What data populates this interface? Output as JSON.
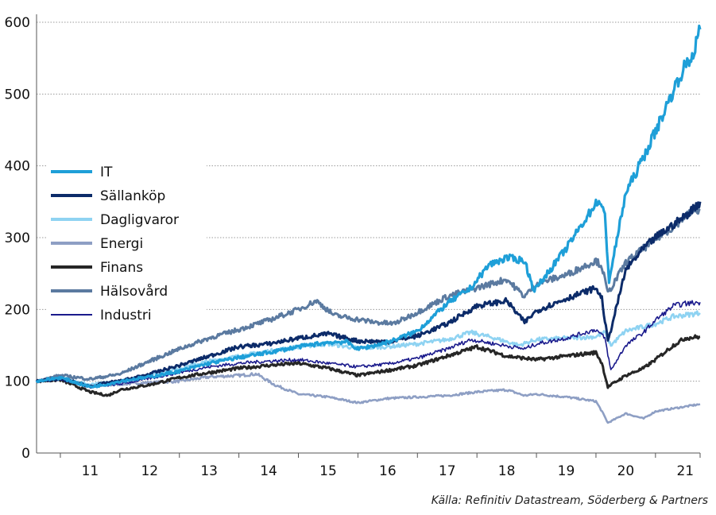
{
  "chart_data": {
    "type": "line",
    "title": "",
    "xlabel": "",
    "ylabel": "",
    "ylim": [
      0,
      600
    ],
    "yticks": [
      0,
      100,
      200,
      300,
      400,
      500,
      600
    ],
    "x_ticks": [
      "11",
      "12",
      "13",
      "14",
      "15",
      "16",
      "17",
      "18",
      "19",
      "20",
      "21"
    ],
    "x_range": [
      2010.6,
      2021.75
    ],
    "grid": "horizontal dotted",
    "legend_placement": "left",
    "series": [
      {
        "name": "IT",
        "color": "#1e9fd8",
        "x": [
          2010.6,
          2011.0,
          2011.5,
          2011.8,
          2012.0,
          2012.5,
          2013.0,
          2013.5,
          2014.0,
          2014.5,
          2015.0,
          2015.5,
          2015.8,
          2016.0,
          2016.3,
          2016.6,
          2017.0,
          2017.5,
          2017.9,
          2018.2,
          2018.5,
          2018.8,
          2018.95,
          2019.0,
          2019.5,
          2020.0,
          2020.05,
          2020.15,
          2020.22,
          2020.5,
          2020.8,
          2021.0,
          2021.3,
          2021.5,
          2021.6,
          2021.75
        ],
        "y": [
          100,
          105,
          92,
          96,
          100,
          106,
          114,
          125,
          133,
          140,
          148,
          154,
          155,
          145,
          150,
          157,
          170,
          208,
          230,
          262,
          272,
          268,
          228,
          230,
          285,
          348,
          352,
          330,
          240,
          362,
          412,
          448,
          505,
          540,
          548,
          590
        ]
      },
      {
        "name": "Sällanköp",
        "color": "#0c2b69",
        "x": [
          2010.6,
          2011.0,
          2011.5,
          2011.8,
          2012.0,
          2012.5,
          2013.0,
          2013.5,
          2014.0,
          2014.5,
          2015.0,
          2015.5,
          2016.0,
          2016.5,
          2017.0,
          2017.5,
          2018.0,
          2018.5,
          2018.8,
          2019.0,
          2019.5,
          2020.0,
          2020.1,
          2020.2,
          2020.5,
          2020.8,
          2021.0,
          2021.3,
          2021.5,
          2021.75
        ],
        "y": [
          100,
          104,
          93,
          98,
          100,
          110,
          122,
          135,
          148,
          152,
          160,
          166,
          156,
          155,
          163,
          180,
          205,
          212,
          182,
          198,
          215,
          230,
          215,
          155,
          255,
          285,
          300,
          318,
          330,
          350
        ]
      },
      {
        "name": "Dagligvaror",
        "color": "#8fd3f2",
        "x": [
          2010.6,
          2011.0,
          2011.5,
          2012.0,
          2012.5,
          2013.0,
          2013.5,
          2014.0,
          2014.5,
          2015.0,
          2015.5,
          2016.0,
          2016.5,
          2017.0,
          2017.5,
          2017.9,
          2018.3,
          2018.7,
          2019.0,
          2019.5,
          2020.0,
          2020.15,
          2020.25,
          2020.5,
          2021.0,
          2021.3,
          2021.75
        ],
        "y": [
          100,
          105,
          95,
          100,
          108,
          118,
          128,
          135,
          142,
          148,
          152,
          146,
          148,
          152,
          158,
          168,
          160,
          150,
          158,
          160,
          162,
          168,
          150,
          170,
          180,
          190,
          195
        ]
      },
      {
        "name": "Energi",
        "color": "#8e9fc4",
        "x": [
          2010.6,
          2011.0,
          2011.5,
          2012.0,
          2012.5,
          2013.0,
          2013.5,
          2014.0,
          2014.3,
          2014.6,
          2015.0,
          2015.5,
          2016.0,
          2016.5,
          2017.0,
          2017.5,
          2018.0,
          2018.5,
          2018.8,
          2019.0,
          2019.5,
          2020.0,
          2020.1,
          2020.2,
          2020.5,
          2020.8,
          2021.0,
          2021.3,
          2021.6,
          2021.75
        ],
        "y": [
          100,
          104,
          92,
          96,
          98,
          100,
          106,
          108,
          110,
          95,
          82,
          78,
          70,
          76,
          78,
          80,
          85,
          88,
          80,
          82,
          78,
          72,
          58,
          42,
          55,
          48,
          58,
          62,
          66,
          68
        ]
      },
      {
        "name": "Finans",
        "color": "#262626",
        "x": [
          2010.6,
          2011.0,
          2011.5,
          2011.8,
          2012.0,
          2012.5,
          2013.0,
          2013.5,
          2014.0,
          2014.5,
          2015.0,
          2015.5,
          2016.0,
          2016.5,
          2017.0,
          2017.5,
          2018.0,
          2018.5,
          2019.0,
          2019.5,
          2020.0,
          2020.1,
          2020.2,
          2020.5,
          2020.8,
          2021.0,
          2021.3,
          2021.5,
          2021.75
        ],
        "y": [
          100,
          102,
          85,
          80,
          88,
          95,
          105,
          112,
          118,
          122,
          125,
          118,
          108,
          115,
          122,
          135,
          148,
          135,
          130,
          135,
          140,
          125,
          92,
          108,
          118,
          130,
          150,
          160,
          162
        ]
      },
      {
        "name": "Hälsovård",
        "color": "#5b7aa0",
        "x": [
          2010.6,
          2011.0,
          2011.5,
          2012.0,
          2012.5,
          2013.0,
          2013.5,
          2014.0,
          2014.5,
          2015.0,
          2015.3,
          2015.6,
          2016.0,
          2016.3,
          2016.6,
          2017.0,
          2017.5,
          2018.0,
          2018.5,
          2018.8,
          2019.0,
          2019.5,
          2020.0,
          2020.1,
          2020.2,
          2020.5,
          2020.8,
          2021.0,
          2021.3,
          2021.5,
          2021.75
        ],
        "y": [
          100,
          108,
          103,
          110,
          128,
          145,
          160,
          172,
          185,
          200,
          212,
          192,
          186,
          182,
          180,
          196,
          218,
          230,
          242,
          218,
          236,
          248,
          268,
          260,
          222,
          265,
          285,
          298,
          315,
          330,
          340
        ]
      },
      {
        "name": "Industri",
        "color": "#1a1a8c",
        "x": [
          2010.6,
          2011.0,
          2011.5,
          2012.0,
          2012.5,
          2013.0,
          2013.5,
          2014.0,
          2014.5,
          2015.0,
          2015.5,
          2016.0,
          2016.5,
          2017.0,
          2017.5,
          2017.9,
          2018.3,
          2018.8,
          2019.0,
          2019.5,
          2020.0,
          2020.15,
          2020.25,
          2020.5,
          2020.8,
          2021.0,
          2021.3,
          2021.5,
          2021.75
        ],
        "y": [
          100,
          103,
          92,
          96,
          104,
          112,
          120,
          125,
          128,
          130,
          125,
          120,
          124,
          132,
          145,
          158,
          152,
          145,
          152,
          160,
          172,
          160,
          115,
          150,
          168,
          185,
          205,
          208,
          210
        ]
      }
    ]
  },
  "legend": {
    "items": [
      "IT",
      "Sällanköp",
      "Dagligvaror",
      "Energi",
      "Finans",
      "Hälsovård",
      "Industri"
    ]
  },
  "source_text": "Källa: Refinitiv Datastream, Söderberg & Partners"
}
